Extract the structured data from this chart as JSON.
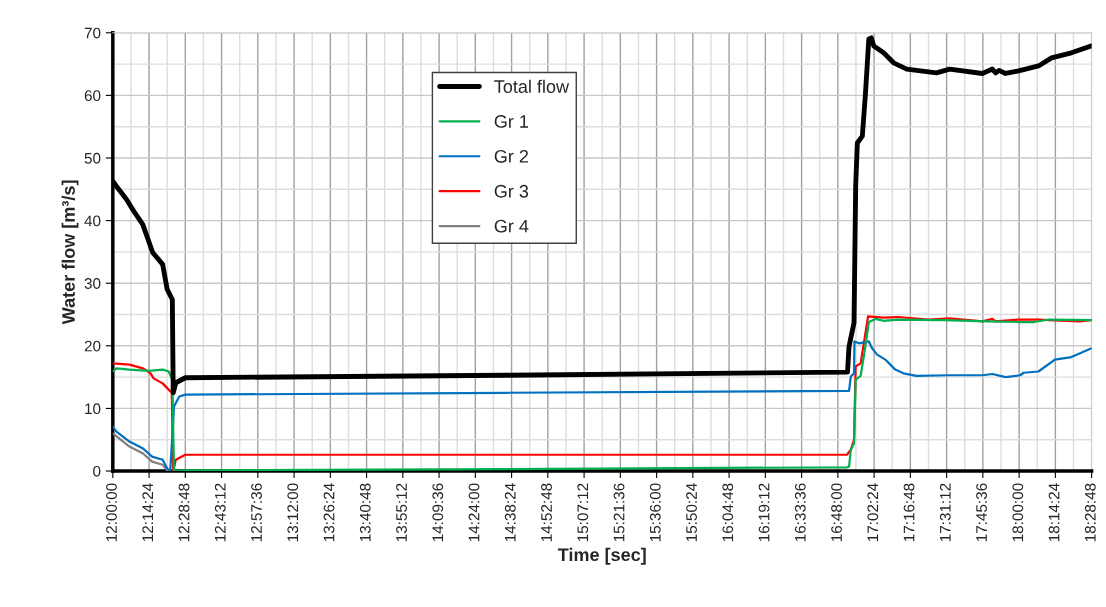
{
  "chart_data": {
    "type": "line",
    "xlabel": "Time [sec]",
    "ylabel": "Water flow [m³/s]",
    "xlim": [
      12.0,
      18.48
    ],
    "ylim": [
      0,
      70
    ],
    "yticks": [
      0,
      10,
      20,
      30,
      40,
      50,
      60,
      70
    ],
    "xticks": [
      {
        "value": 12.0,
        "label": "12:00:00"
      },
      {
        "value": 12.24,
        "label": "12:14:24"
      },
      {
        "value": 12.48,
        "label": "12:28:48"
      },
      {
        "value": 12.72,
        "label": "12:43:12"
      },
      {
        "value": 12.96,
        "label": "12:57:36"
      },
      {
        "value": 13.2,
        "label": "13:12:00"
      },
      {
        "value": 13.44,
        "label": "13:26:24"
      },
      {
        "value": 13.68,
        "label": "13:40:48"
      },
      {
        "value": 13.92,
        "label": "13:55:12"
      },
      {
        "value": 14.16,
        "label": "14:09:36"
      },
      {
        "value": 14.4,
        "label": "14:24:00"
      },
      {
        "value": 14.64,
        "label": "14:38:24"
      },
      {
        "value": 14.88,
        "label": "14:52:48"
      },
      {
        "value": 15.12,
        "label": "15:07:12"
      },
      {
        "value": 15.36,
        "label": "15:21:36"
      },
      {
        "value": 15.6,
        "label": "15:36:00"
      },
      {
        "value": 15.84,
        "label": "15:50:24"
      },
      {
        "value": 16.08,
        "label": "16:04:48"
      },
      {
        "value": 16.32,
        "label": "16:19:12"
      },
      {
        "value": 16.56,
        "label": "16:33:36"
      },
      {
        "value": 16.8,
        "label": "16:48:00"
      },
      {
        "value": 17.04,
        "label": "17:02:24"
      },
      {
        "value": 17.28,
        "label": "17:16:48"
      },
      {
        "value": 17.52,
        "label": "17:31:12"
      },
      {
        "value": 17.76,
        "label": "17:45:36"
      },
      {
        "value": 18.0,
        "label": "18:00:00"
      },
      {
        "value": 18.24,
        "label": "18:14:24"
      },
      {
        "value": 18.48,
        "label": "18:28:48"
      }
    ],
    "grid": true,
    "legend": "top",
    "marker": "none",
    "line_style": "solid",
    "series": [
      {
        "name": "Total flow",
        "color": "#000000",
        "x": [
          12.0,
          12.024,
          12.09,
          12.144,
          12.198,
          12.264,
          12.33,
          12.36,
          12.394,
          12.4,
          12.417,
          12.48,
          14.6,
          16.864,
          16.874,
          16.907,
          16.918,
          16.929,
          16.962,
          16.983,
          17.005,
          17.021,
          17.038,
          17.103,
          17.169,
          17.256,
          17.453,
          17.54,
          17.757,
          17.823,
          17.845,
          17.867,
          17.91,
          17.997,
          18.128,
          18.215,
          18.346,
          18.48
        ],
        "values": [
          46.3,
          45.5,
          43.4,
          41.3,
          39.4,
          34.9,
          33.0,
          29.0,
          27.4,
          12.5,
          14.1,
          14.9,
          15.3,
          15.8,
          19.9,
          23.7,
          45.5,
          52.4,
          53.5,
          60.4,
          69.0,
          69.2,
          67.9,
          66.8,
          65.2,
          64.2,
          63.6,
          64.2,
          63.5,
          64.2,
          63.6,
          64.0,
          63.5,
          63.9,
          64.7,
          66.0,
          66.8,
          67.9
        ]
      },
      {
        "name": "Gr 1",
        "color": "#00b050",
        "x": [
          12.0,
          12.024,
          12.11,
          12.24,
          12.33,
          12.37,
          12.394,
          12.405,
          12.48,
          14.6,
          16.86,
          16.874,
          16.886,
          16.907,
          16.918,
          16.951,
          16.983,
          17.005,
          17.05,
          17.1,
          17.2,
          17.5,
          17.8,
          18.0,
          18.1,
          18.2,
          18.48
        ],
        "values": [
          15.9,
          16.4,
          16.2,
          16.0,
          16.2,
          15.9,
          14.6,
          0,
          0.1,
          0.3,
          0.6,
          0.7,
          3.4,
          4.4,
          14.6,
          15.2,
          20.0,
          23.8,
          24.3,
          24.0,
          24.2,
          24.1,
          23.9,
          23.8,
          23.8,
          24.2,
          24.1
        ]
      },
      {
        "name": "Gr 2",
        "color": "#0070c0",
        "x": [
          12.0,
          12.024,
          12.11,
          12.2,
          12.26,
          12.33,
          12.36,
          12.38,
          12.394,
          12.405,
          12.44,
          12.48,
          14.6,
          16.874,
          16.886,
          16.907,
          16.91,
          16.94,
          17.005,
          17.027,
          17.06,
          17.114,
          17.18,
          17.234,
          17.32,
          17.54,
          17.757,
          17.823,
          17.91,
          18.008,
          18.03,
          18.128,
          18.237,
          18.346,
          18.48
        ],
        "values": [
          7.1,
          6.3,
          4.7,
          3.6,
          2.3,
          1.8,
          0.4,
          0,
          5.5,
          10.3,
          11.9,
          12.2,
          12.5,
          12.8,
          15.1,
          15.6,
          20.7,
          20.4,
          20.7,
          19.6,
          18.6,
          17.8,
          16.2,
          15.6,
          15.2,
          15.3,
          15.3,
          15.5,
          15.0,
          15.3,
          15.7,
          15.9,
          17.8,
          18.2,
          19.6
        ]
      },
      {
        "name": "Gr 3",
        "color": "#ff0000",
        "x": [
          12.0,
          12.11,
          12.2,
          12.25,
          12.27,
          12.33,
          12.37,
          12.39,
          12.4,
          12.417,
          12.48,
          14.6,
          16.86,
          16.886,
          16.907,
          16.918,
          16.951,
          17.0,
          17.1,
          17.2,
          17.4,
          17.54,
          17.757,
          17.823,
          17.845,
          17.997,
          18.128,
          18.4,
          18.48
        ],
        "values": [
          17.2,
          17.0,
          16.4,
          15.6,
          14.8,
          14.0,
          13.0,
          12.5,
          0,
          1.8,
          2.6,
          2.6,
          2.6,
          3.4,
          5.0,
          16.7,
          17.2,
          24.7,
          24.5,
          24.6,
          24.2,
          24.4,
          23.9,
          24.3,
          23.9,
          24.2,
          24.2,
          23.9,
          24.1
        ]
      },
      {
        "name": "Gr 4",
        "color": "#808080",
        "x": [
          12.0,
          12.11,
          12.2,
          12.26,
          12.33,
          12.36,
          12.38
        ],
        "values": [
          6.0,
          3.9,
          2.8,
          1.5,
          1.0,
          0.1,
          0
        ]
      }
    ]
  }
}
